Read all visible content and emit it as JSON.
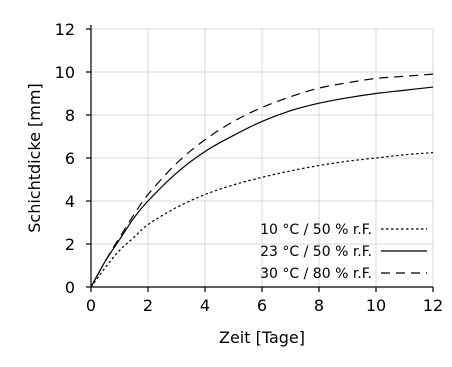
{
  "chart_data": {
    "type": "line",
    "xlabel": "Zeit [Tage]",
    "ylabel": "Schichtdicke [mm]",
    "xlim": [
      0,
      12
    ],
    "ylim": [
      0,
      12
    ],
    "xticks": [
      "0",
      "2",
      "4",
      "6",
      "8",
      "10",
      "12"
    ],
    "yticks": [
      "0",
      "2",
      "4",
      "6",
      "8",
      "10",
      "12"
    ],
    "grid": true,
    "legend": "bottom-right",
    "series": [
      {
        "name": "10 °C / 50 % r.F.",
        "style": "dotted",
        "x": [
          0,
          0.5,
          1,
          1.5,
          2,
          3,
          4,
          5,
          6,
          7,
          8,
          9,
          10,
          11,
          12
        ],
        "y": [
          0,
          0.9,
          1.7,
          2.3,
          2.9,
          3.7,
          4.3,
          4.75,
          5.1,
          5.4,
          5.65,
          5.85,
          6.0,
          6.15,
          6.25
        ]
      },
      {
        "name": "23 °C / 50 % r.F.",
        "style": "solid",
        "x": [
          0,
          0.5,
          1,
          1.5,
          2,
          3,
          4,
          5,
          6,
          7,
          8,
          9,
          10,
          11,
          12
        ],
        "y": [
          0,
          1.2,
          2.2,
          3.2,
          4.0,
          5.3,
          6.3,
          7.05,
          7.7,
          8.2,
          8.55,
          8.8,
          9.0,
          9.15,
          9.3
        ]
      },
      {
        "name": "30 °C / 80 % r.F.",
        "style": "dashed",
        "x": [
          0,
          0.5,
          1,
          1.5,
          2,
          3,
          4,
          5,
          6,
          7,
          8,
          9,
          10,
          11,
          12
        ],
        "y": [
          0,
          1.2,
          2.3,
          3.35,
          4.3,
          5.75,
          6.85,
          7.7,
          8.35,
          8.85,
          9.25,
          9.5,
          9.7,
          9.8,
          9.9
        ]
      }
    ]
  }
}
